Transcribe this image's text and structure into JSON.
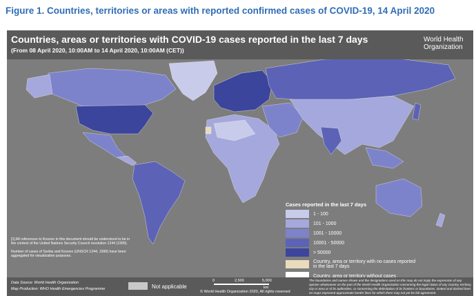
{
  "figure_title": "Figure 1. Countries, territories or areas with reported confirmed cases of COVID-19, 14 April 2020",
  "map": {
    "title": "Countries, areas or territories with COVID-19  cases reported in the last 7 days",
    "subtitle": "(From 08 April 2020, 10:00AM to 14 April 2020, 10:00AM (CET))",
    "logo": [
      "World Health",
      "Organization"
    ]
  },
  "legend": {
    "title": "Cases reported in the last 7 days",
    "items": [
      {
        "label": "1 - 100",
        "color": "#c9cbea"
      },
      {
        "label": "101 - 1000",
        "color": "#a4a8dc"
      },
      {
        "label": "1001 - 10000",
        "color": "#7d83cb"
      },
      {
        "label": "10001 - 50000",
        "color": "#5c63b6"
      },
      {
        "label": "> 50000",
        "color": "#3c459c"
      },
      {
        "label": "Country, area or territory with no cases reported in the last 7 days",
        "color": "#e9dcbd"
      },
      {
        "label": "Country, area or territory without cases",
        "color": "#ffffff"
      }
    ]
  },
  "notes": [
    "[1] All references to Kosovo in this document should be understood to be in the context of the United Nations Security Council resolution 1244 (1999).",
    "Number of cases of Serbia and Kosovo (UNSCR 1244, 1999) have been aggregated for visualization purposes."
  ],
  "footer": {
    "data_source": "Data Source: World Health Organization",
    "map_production": "Map Production: WHO Health Emergencies Programme",
    "not_applicable": "Not applicable",
    "scale": [
      "0",
      "2,500",
      "5,000",
      "km"
    ],
    "copyright": "© World Health Organization 2020, All rights reserved",
    "disclaimer": "The boundaries and names shown and the designations used on this map do not imply the expression of any opinion whatsoever on the part of the World Health Organization concerning the legal status of any country, territory, city or area or of its authorities, or concerning the delimitation of its frontiers or boundaries. Dotted and dashed lines on maps represent approximate border lines for which there may not yet be full agreement."
  }
}
